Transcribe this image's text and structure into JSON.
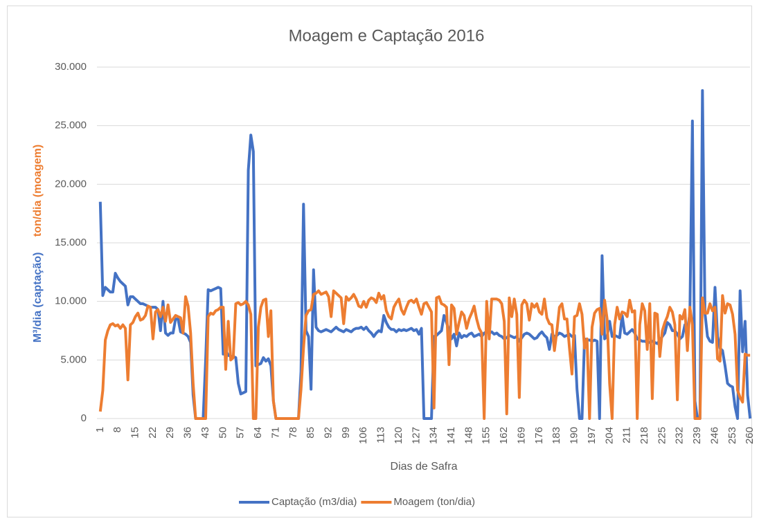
{
  "chart_data": {
    "type": "line",
    "title": "Moagem e Captação 2016",
    "xlabel": "Dias de Safra",
    "ylabel_captacao": "M³/dia  (captação)",
    "ylabel_moagem": "ton/dia (moagem)",
    "ylim": [
      0,
      30000
    ],
    "yticks": [
      0,
      {
        "value": 5000,
        "label": "5.000"
      },
      {
        "value": 10000,
        "label": "10.000"
      },
      {
        "value": 15000,
        "label": "15.000"
      },
      {
        "value": 20000,
        "label": "20.000"
      },
      {
        "value": 25000,
        "label": "25.000"
      },
      {
        "value": 30000,
        "label": "30.000"
      }
    ],
    "grid": true,
    "legend": "bottom",
    "categories": [
      1,
      null,
      null,
      null,
      null,
      null,
      null,
      8,
      null,
      null,
      null,
      null,
      null,
      null,
      15,
      null,
      null,
      null,
      null,
      null,
      null,
      22,
      null,
      null,
      null,
      null,
      null,
      null,
      29,
      null,
      null,
      null,
      null,
      null,
      null,
      36,
      null,
      null,
      null,
      null,
      null,
      null,
      43,
      null,
      null,
      null,
      null,
      null,
      null,
      50,
      null,
      null,
      null,
      null,
      null,
      null,
      57,
      null,
      null,
      null,
      null,
      null,
      null,
      64,
      null,
      null,
      null,
      null,
      null,
      null,
      71,
      null,
      null,
      null,
      null,
      null,
      null,
      78,
      null,
      null,
      null,
      null,
      null,
      null,
      85,
      null,
      null,
      null,
      null,
      null,
      null,
      92,
      null,
      null,
      null,
      null,
      null,
      null,
      99,
      null,
      null,
      null,
      null,
      null,
      null,
      106,
      null,
      null,
      null,
      null,
      null,
      null,
      113,
      null,
      null,
      null,
      null,
      null,
      null,
      120,
      null,
      null,
      null,
      null,
      null,
      null,
      127,
      null,
      null,
      null,
      null,
      null,
      null,
      134,
      null,
      null,
      null,
      null,
      null,
      null,
      141,
      null,
      null,
      null,
      null,
      null,
      null,
      148,
      null,
      null,
      null,
      null,
      null,
      null,
      155,
      null,
      null,
      null,
      null,
      null,
      null,
      162,
      null,
      null,
      null,
      null,
      null,
      null,
      169,
      null,
      null,
      null,
      null,
      null,
      null,
      176,
      null,
      null,
      null,
      null,
      null,
      null,
      183,
      null,
      null,
      null,
      null,
      null,
      null,
      190,
      null,
      null,
      null,
      null,
      null,
      null,
      197,
      null,
      null,
      null,
      null,
      null,
      null,
      204,
      null,
      null,
      null,
      null,
      null,
      null,
      211,
      null,
      null,
      null,
      null,
      null,
      null,
      218,
      null,
      null,
      null,
      null,
      null,
      null,
      225,
      null,
      null,
      null,
      null,
      null,
      null,
      232,
      null,
      null,
      null,
      null,
      null,
      null,
      239,
      null,
      null,
      null,
      null,
      null,
      null,
      246,
      null,
      null,
      null,
      null,
      null,
      null,
      253,
      null,
      null,
      null,
      null,
      null,
      null,
      260
    ],
    "series": [
      {
        "name": "Captação (m3/dia)",
        "color": "#4472c4",
        "values": [
          18500,
          10500,
          11200,
          11000,
          10800,
          10800,
          12400,
          12000,
          11700,
          11500,
          11300,
          9700,
          10400,
          10400,
          10200,
          10000,
          9800,
          9800,
          9700,
          9600,
          9500,
          9500,
          9500,
          9300,
          7500,
          10000,
          7300,
          7100,
          7300,
          7300,
          8500,
          8500,
          7400,
          7300,
          7200,
          7000,
          6500,
          2000,
          0,
          0,
          0,
          0,
          5000,
          11000,
          10900,
          11000,
          11100,
          11200,
          11100,
          5500,
          5800,
          5400,
          5300,
          5300,
          5200,
          3000,
          2100,
          2200,
          2300,
          21200,
          24200,
          22800,
          4500,
          4600,
          4700,
          5200,
          4900,
          5100,
          4500,
          1500,
          0,
          0,
          0,
          0,
          0,
          0,
          0,
          0,
          0,
          0,
          4000,
          18300,
          7500,
          7000,
          2500,
          12700,
          7800,
          7500,
          7400,
          7500,
          7600,
          7500,
          7400,
          7600,
          7800,
          7600,
          7500,
          7400,
          7600,
          7500,
          7400,
          7600,
          7700,
          7700,
          7800,
          7600,
          7800,
          7500,
          7300,
          7000,
          7300,
          7500,
          7400,
          8800,
          8200,
          7800,
          7600,
          7600,
          7400,
          7600,
          7500,
          7600,
          7500,
          7600,
          7700,
          7500,
          7600,
          7200,
          7700,
          0,
          0,
          0,
          0,
          7000,
          7100,
          7300,
          7500,
          8800,
          8200,
          7500,
          6800,
          7200,
          6200,
          7300,
          6900,
          7100,
          7000,
          7200,
          7300,
          7000,
          7100,
          7200,
          7000,
          7300,
          7400,
          7300,
          7400,
          7200,
          7300,
          7100,
          7000,
          6800,
          6900,
          7100,
          7000,
          6900,
          7000,
          6600,
          6900,
          7200,
          7300,
          7200,
          7000,
          6800,
          6900,
          7200,
          7400,
          7100,
          6900,
          5900,
          7200,
          7000,
          7100,
          7300,
          7200,
          7000,
          7100,
          7200,
          7000,
          7100,
          2500,
          0,
          0,
          6800,
          6700,
          6700,
          6600,
          6700,
          6600,
          0,
          13900,
          6800,
          7000,
          8300,
          7000,
          7100,
          7000,
          6900,
          8800,
          7300,
          7200,
          7400,
          7600,
          7300,
          6800,
          6700,
          6600,
          6600,
          6500,
          6500,
          6600,
          6500,
          6400,
          6700,
          7000,
          7300,
          8200,
          8000,
          7500,
          7500,
          7200,
          6800,
          7000,
          8000,
          7500,
          9000,
          25400,
          1500,
          0,
          0,
          28000,
          9000,
          7000,
          6600,
          6500,
          11200,
          7000,
          6000,
          5800,
          4500,
          3000,
          2800,
          2700,
          1000,
          0,
          10900,
          5700,
          8300,
          2000,
          0
        ]
      },
      {
        "name": "Moagem (ton/dia)",
        "color": "#ed7d31",
        "values": [
          600,
          2400,
          6700,
          7500,
          8000,
          8100,
          7900,
          8000,
          7700,
          8000,
          7700,
          3300,
          8000,
          8200,
          8700,
          9000,
          8400,
          8500,
          8800,
          9600,
          9500,
          6800,
          9100,
          9300,
          8700,
          9500,
          8300,
          9700,
          8200,
          8500,
          8800,
          8700,
          8600,
          7300,
          10400,
          9600,
          7300,
          3000,
          0,
          0,
          0,
          0,
          0,
          8700,
          9000,
          8900,
          9200,
          9300,
          9500,
          9500,
          4200,
          8300,
          5000,
          5200,
          9800,
          9900,
          9700,
          9800,
          10000,
          9700,
          8900,
          0,
          0,
          7800,
          9500,
          10100,
          10200,
          7000,
          9200,
          1500,
          0,
          0,
          0,
          0,
          0,
          0,
          0,
          0,
          0,
          0,
          2500,
          6000,
          8800,
          9200,
          9300,
          10600,
          10700,
          10900,
          10600,
          10700,
          10800,
          10400,
          8700,
          10900,
          10700,
          10500,
          10300,
          8100,
          10400,
          10100,
          10300,
          10600,
          10200,
          9600,
          9500,
          10000,
          9500,
          10100,
          10300,
          10200,
          9900,
          10700,
          10200,
          10500,
          9200,
          8700,
          8500,
          9500,
          9900,
          10200,
          9300,
          8900,
          9500,
          10000,
          10100,
          9900,
          10200,
          9500,
          8900,
          9800,
          9900,
          9500,
          9100,
          900,
          10300,
          10400,
          9800,
          9700,
          9500,
          4600,
          9700,
          9400,
          7200,
          8200,
          9100,
          8800,
          7700,
          8500,
          9000,
          9600,
          8500,
          7700,
          7300,
          0,
          10000,
          6800,
          10200,
          10200,
          10200,
          10100,
          9800,
          8300,
          400,
          10300,
          8700,
          10200,
          8900,
          1800,
          9700,
          10100,
          9800,
          8400,
          9800,
          9500,
          9800,
          9100,
          8900,
          10200,
          8600,
          8100,
          8000,
          5800,
          7500,
          9500,
          9800,
          8500,
          8500,
          6000,
          3800,
          8700,
          8800,
          9800,
          8900,
          6000,
          6800,
          0,
          7800,
          9000,
          9300,
          9400,
          7200,
          10100,
          8500,
          3000,
          0,
          8000,
          9500,
          8500,
          9100,
          9000,
          8700,
          10100,
          9100,
          9200,
          0,
          8000,
          9800,
          9200,
          5900,
          9800,
          1700,
          9000,
          8900,
          5300,
          7500,
          8200,
          8700,
          9500,
          9100,
          8000,
          1600,
          8800,
          8500,
          9300,
          5800,
          9500,
          8000,
          0,
          0,
          0,
          10300,
          9000,
          9000,
          9800,
          9200,
          9500,
          5100,
          4900,
          10500,
          9000,
          9800,
          9700,
          8900,
          7200,
          2400,
          1800,
          1400,
          5500,
          5400,
          5400
        ]
      }
    ]
  }
}
